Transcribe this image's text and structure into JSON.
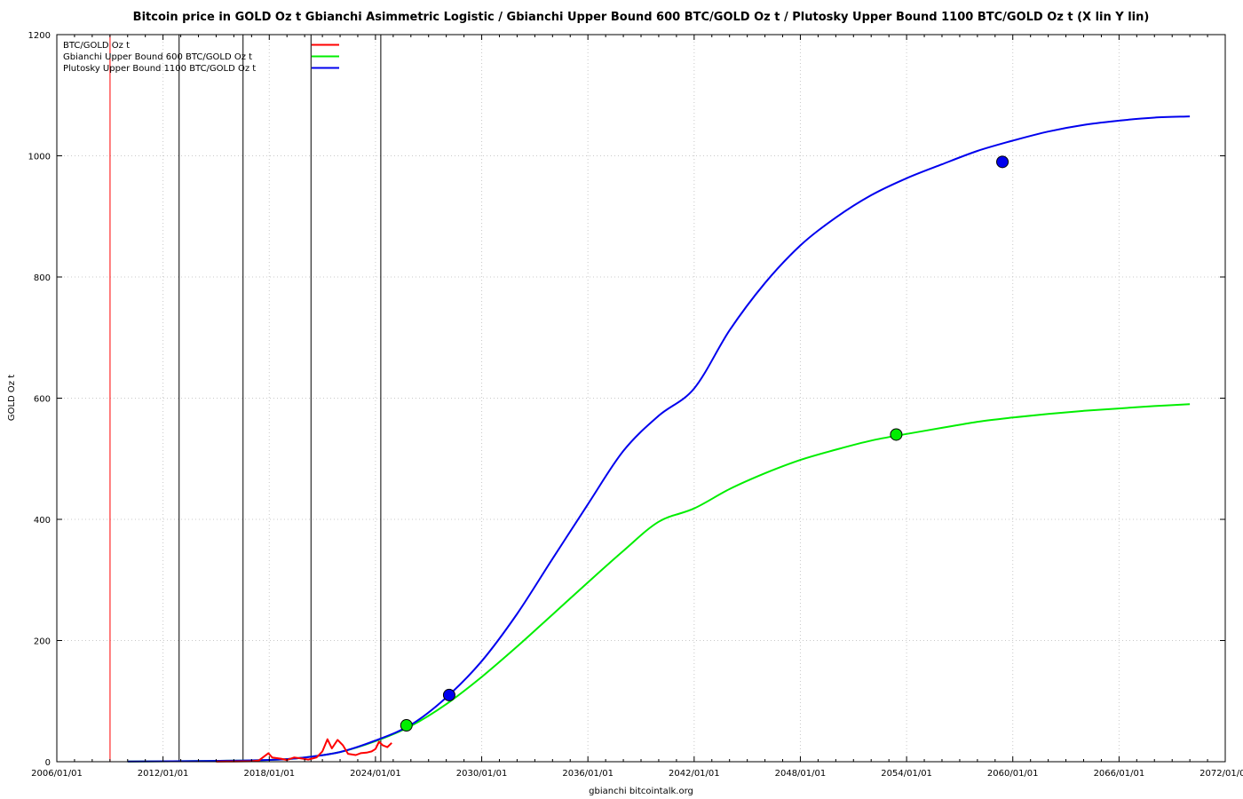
{
  "chart_data": {
    "type": "line",
    "title": "Bitcoin price in GOLD Oz t Gbianchi Asimmetric Logistic / Gbianchi Upper Bound 600  BTC/GOLD Oz t / Plutosky Upper Bound 1100  BTC/GOLD Oz t  (X lin Y lin)",
    "xlabel": "gbianchi bitcointalk.org",
    "ylabel": "GOLD Oz t",
    "xlim": [
      "2006/01/01",
      "2072/01/01"
    ],
    "ylim": [
      0,
      1200
    ],
    "x_ticks": [
      "2006/01/01",
      "2012/01/01",
      "2018/01/01",
      "2024/01/01",
      "2030/01/01",
      "2036/01/01",
      "2042/01/01",
      "2048/01/01",
      "2054/01/01",
      "2060/01/01",
      "2066/01/01",
      "2072/01/01"
    ],
    "y_ticks": [
      0,
      200,
      400,
      600,
      800,
      1000,
      1200
    ],
    "grid": true,
    "legend_position": "top-left",
    "vertical_lines": [
      {
        "x": "2009/01/03",
        "color": "#ff0000"
      },
      {
        "x": "2012/11/28",
        "color": "#000000"
      },
      {
        "x": "2016/07/09",
        "color": "#000000"
      },
      {
        "x": "2020/05/11",
        "color": "#000000"
      },
      {
        "x": "2024/04/20",
        "color": "#000000"
      }
    ],
    "series": [
      {
        "name": "BTC/GOLD Oz t",
        "color": "#ff0000",
        "x": [
          "2015/01/01",
          "2016/01/01",
          "2017/01/01",
          "2017/06/01",
          "2017/12/15",
          "2018/03/01",
          "2018/09/01",
          "2019/01/01",
          "2019/06/01",
          "2019/12/01",
          "2020/03/15",
          "2020/09/01",
          "2021/01/01",
          "2021/04/15",
          "2021/07/15",
          "2021/11/10",
          "2022/03/01",
          "2022/06/15",
          "2022/11/20",
          "2023/03/01",
          "2023/07/01",
          "2023/10/15",
          "2024/01/01",
          "2024/03/15",
          "2024/06/01",
          "2024/09/01",
          "2024/12/01"
        ],
        "y": [
          0.2,
          0.4,
          0.8,
          2,
          14,
          7,
          5,
          2.8,
          7,
          5,
          3.5,
          7,
          17,
          37,
          22,
          36,
          27,
          13,
          11,
          14,
          15,
          17,
          21,
          33,
          27,
          24,
          31
        ]
      },
      {
        "name": "Gbianchi Upper Bound 600  BTC/GOLD Oz t",
        "color": "#00ee00",
        "x": [
          "2010/01/01",
          "2014/01/01",
          "2018/01/01",
          "2020/01/01",
          "2022/01/01",
          "2024/01/01",
          "2026/01/01",
          "2028/01/01",
          "2030/01/01",
          "2032/01/01",
          "2034/01/01",
          "2036/01/01",
          "2038/01/01",
          "2040/01/01",
          "2042/01/01",
          "2044/01/01",
          "2046/01/01",
          "2048/01/01",
          "2050/01/01",
          "2052/01/01",
          "2054/01/01",
          "2056/01/01",
          "2058/01/01",
          "2060/01/01",
          "2062/01/01",
          "2064/01/01",
          "2066/01/01",
          "2068/01/01",
          "2070/01/01"
        ],
        "y": [
          0.5,
          1,
          3,
          7,
          16,
          34,
          59,
          95,
          140,
          190,
          243,
          296,
          348,
          396,
          418,
          450,
          476,
          498,
          515,
          530,
          541,
          551,
          561,
          568,
          574,
          579,
          583,
          587,
          590
        ]
      },
      {
        "name": "Plutosky Upper Bound 1100  BTC/GOLD Oz t",
        "color": "#0000ee",
        "x": [
          "2010/01/01",
          "2014/01/01",
          "2018/01/01",
          "2020/01/01",
          "2022/01/01",
          "2024/01/01",
          "2026/01/01",
          "2028/01/01",
          "2030/01/01",
          "2032/01/01",
          "2034/01/01",
          "2036/01/01",
          "2038/01/01",
          "2040/01/01",
          "2042/01/01",
          "2044/01/01",
          "2046/01/01",
          "2048/01/01",
          "2050/01/01",
          "2052/01/01",
          "2054/01/01",
          "2056/01/01",
          "2058/01/01",
          "2060/01/01",
          "2062/01/01",
          "2064/01/01",
          "2066/01/01",
          "2068/01/01",
          "2070/01/01"
        ],
        "y": [
          0.5,
          1,
          3,
          7,
          16,
          35,
          61,
          106,
          166,
          244,
          335,
          425,
          513,
          571,
          616,
          712,
          790,
          852,
          898,
          935,
          963,
          986,
          1008,
          1025,
          1040,
          1051,
          1058,
          1063,
          1065
        ]
      }
    ],
    "markers": [
      {
        "x": "2025/10/01",
        "y": 60,
        "color": "#00ee00"
      },
      {
        "x": "2028/03/01",
        "y": 110,
        "color": "#0000ee"
      },
      {
        "x": "2053/06/01",
        "y": 540,
        "color": "#00ee00"
      },
      {
        "x": "2059/06/01",
        "y": 990,
        "color": "#0000ee"
      }
    ]
  }
}
